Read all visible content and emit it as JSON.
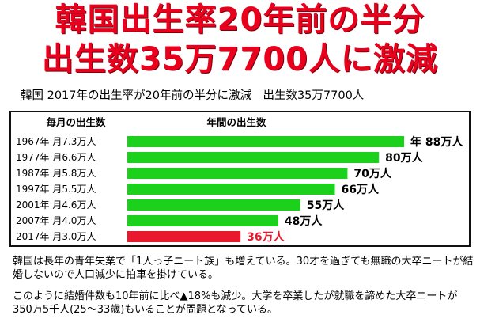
{
  "headline": {
    "line1": "韓国出生率20年前の半分",
    "line2": "出生数35万7700人に激減"
  },
  "subtitle": "韓国 2017年の出生率が20年前の半分に激減　出生数35万7700人",
  "colors": {
    "headline": "#e8001c",
    "bar_green": "#1bd11b",
    "bar_red": "#e8192c",
    "value_red": "#e8192c"
  },
  "chart_data": {
    "type": "bar",
    "orientation": "horizontal",
    "column_headers": {
      "left": "毎月の出生数",
      "right": "年間の出生数"
    },
    "categories": [
      "1967年 月7.3万人",
      "1977年 月6.6万人",
      "1987年 月5.8万人",
      "1997年 月5.5万人",
      "2001年 月4.6万人",
      "2007年 月4.0万人",
      "2017年 月3.0万人"
    ],
    "values": [
      88,
      80,
      70,
      66,
      55,
      48,
      36
    ],
    "value_labels": [
      "年 88万人",
      "80万人",
      "70万人",
      "66万人",
      "55万人",
      "48万人",
      "36万人"
    ],
    "highlight_index": 6,
    "unit": "万人",
    "xlim": [
      0,
      88
    ]
  },
  "notes": [
    "韓国は長年の青年失業で「1人っ子ニート族」も増えている。30才を過ぎても無職の大卒ニートが結婚しないので人口減少に拍車を掛けている。",
    "このように結婚件数も10年前に比べ▲18%も減少。大学を卒業したが就職を諦めた大卒ニートが350万5千人(25～33歳)もいることが問題となっている。"
  ]
}
